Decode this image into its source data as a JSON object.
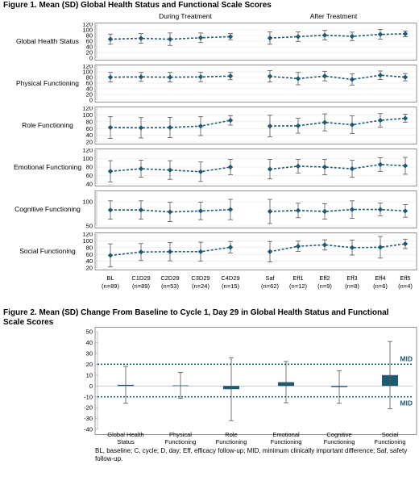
{
  "figure1": {
    "title": "Figure 1. Mean (SD) Global Health Status and Functional Scale Scores",
    "group_headers": [
      "During Treatment",
      "After Treatment"
    ],
    "timepoints": [
      {
        "label": "BL",
        "n": "(n=89)"
      },
      {
        "label": "C1D29",
        "n": "(n=89)"
      },
      {
        "label": "C2D29",
        "n": "(n=53)"
      },
      {
        "label": "C3D29",
        "n": "(n=24)"
      },
      {
        "label": "C4D29",
        "n": "(n=15)"
      },
      {
        "label": "Saf",
        "n": "(n=62)"
      },
      {
        "label": "Eff1",
        "n": "(n=12)"
      },
      {
        "label": "Eff2",
        "n": "(n=9)"
      },
      {
        "label": "Eff3",
        "n": "(n=8)"
      },
      {
        "label": "Eff4",
        "n": "(n=6)"
      },
      {
        "label": "Eff5",
        "n": "(n=4)"
      }
    ]
  },
  "figure2": {
    "title": "Figure 2. Mean (SD) Change From Baseline to Cycle 1, Day 29 in Global Health Status and Functional Scale Scores",
    "mid_label": "MID"
  },
  "footnote": "BL, baseline; C, cycle; D, day; Eff, efficacy follow-up; MID, minimum clinically important difference; Saf, safety follow-up.",
  "colors": {
    "series": "#1f5a73",
    "error_bar": "#555555",
    "grid": "#e6e6e6"
  },
  "chart_data": [
    {
      "type": "line",
      "panel": "Global Health Status",
      "ylim": [
        0,
        120
      ],
      "yticks": [
        0,
        20,
        40,
        60,
        80,
        100,
        120
      ],
      "categories": [
        "BL",
        "C1D29",
        "C2D29",
        "C3D29",
        "C4D29",
        "Saf",
        "Eff1",
        "Eff2",
        "Eff3",
        "Eff4",
        "Eff5"
      ],
      "values": [
        67,
        70,
        67,
        72,
        76,
        71,
        76,
        81,
        77,
        84,
        86
      ],
      "sd": [
        18,
        17,
        22,
        17,
        11,
        22,
        17,
        17,
        15,
        17,
        10
      ]
    },
    {
      "type": "line",
      "panel": "Physical Functioning",
      "ylim": [
        0,
        120
      ],
      "yticks": [
        0,
        20,
        40,
        60,
        80,
        100,
        120
      ],
      "categories": [
        "BL",
        "C1D29",
        "C2D29",
        "C3D29",
        "C4D29",
        "Saf",
        "Eff1",
        "Eff2",
        "Eff3",
        "Eff4",
        "Eff5"
      ],
      "values": [
        81,
        82,
        81,
        82,
        85,
        84,
        76,
        85,
        73,
        88,
        81
      ],
      "sd": [
        17,
        16,
        17,
        17,
        13,
        20,
        22,
        17,
        20,
        15,
        13
      ]
    },
    {
      "type": "line",
      "panel": "Role Functioning",
      "ylim": [
        20,
        120
      ],
      "yticks": [
        20,
        40,
        60,
        80,
        100,
        120
      ],
      "categories": [
        "BL",
        "C1D29",
        "C2D29",
        "C3D29",
        "C4D29",
        "Saf",
        "Eff1",
        "Eff2",
        "Eff3",
        "Eff4",
        "Eff5"
      ],
      "values": [
        63,
        62,
        63,
        67,
        84,
        67,
        68,
        78,
        71,
        84,
        90
      ],
      "sd": [
        32,
        30,
        30,
        28,
        14,
        32,
        22,
        25,
        26,
        20,
        12
      ]
    },
    {
      "type": "line",
      "panel": "Emotional Functioning",
      "ylim": [
        40,
        120
      ],
      "yticks": [
        40,
        60,
        80,
        100,
        120
      ],
      "categories": [
        "BL",
        "C1D29",
        "C2D29",
        "C3D29",
        "C4D29",
        "Saf",
        "Eff1",
        "Eff2",
        "Eff3",
        "Eff4",
        "Eff5"
      ],
      "values": [
        70,
        76,
        73,
        69,
        80,
        75,
        82,
        80,
        76,
        86,
        83
      ],
      "sd": [
        25,
        20,
        22,
        23,
        18,
        23,
        16,
        18,
        20,
        16,
        20
      ]
    },
    {
      "type": "line",
      "panel": "Cognitive Functioning",
      "ylim": [
        50,
        120
      ],
      "yticks": [
        50,
        100
      ],
      "categories": [
        "BL",
        "C1D29",
        "C2D29",
        "C3D29",
        "C4D29",
        "Saf",
        "Eff1",
        "Eff2",
        "Eff3",
        "Eff4",
        "Eff5"
      ],
      "values": [
        83,
        83,
        79,
        81,
        84,
        80,
        82,
        80,
        84,
        84,
        81
      ],
      "sd": [
        19,
        19,
        20,
        18,
        21,
        25,
        15,
        16,
        18,
        13,
        13
      ]
    },
    {
      "type": "line",
      "panel": "Social Functioning",
      "ylim": [
        20,
        120
      ],
      "yticks": [
        20,
        40,
        60,
        80,
        100,
        120
      ],
      "categories": [
        "BL",
        "C1D29",
        "C2D29",
        "C3D29",
        "C4D29",
        "Saf",
        "Eff1",
        "Eff2",
        "Eff3",
        "Eff4",
        "Eff5"
      ],
      "values": [
        57,
        67,
        68,
        68,
        81,
        68,
        84,
        88,
        80,
        81,
        91
      ],
      "sd": [
        34,
        25,
        27,
        28,
        17,
        30,
        15,
        15,
        22,
        32,
        14
      ]
    },
    {
      "type": "bar",
      "title": "Figure 2. Mean (SD) Change From Baseline to Cycle 1, Day 29 in Global Health Status and Functional Scale Scores",
      "categories": [
        "Global Health Status",
        "Physical Functioning",
        "Role Functioning",
        "Emotional Functioning",
        "Cognitive Functioning",
        "Social Functioning"
      ],
      "values": [
        1,
        0.5,
        -3,
        3.5,
        -1,
        10
      ],
      "sd": [
        17,
        12,
        29,
        19,
        15,
        31
      ],
      "ylim": [
        -40,
        50
      ],
      "yticks": [
        -40,
        -30,
        -20,
        -10,
        0,
        10,
        20,
        30,
        40,
        50
      ],
      "reference_lines": [
        {
          "label": "MID",
          "value": 20
        },
        {
          "label": "MID",
          "value": -10
        }
      ]
    }
  ]
}
